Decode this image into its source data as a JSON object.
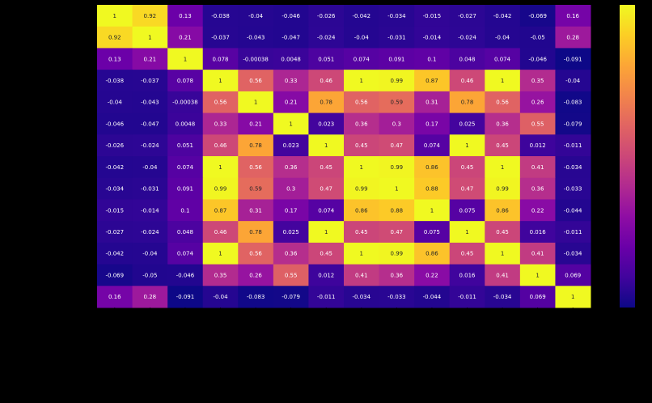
{
  "chart_data": {
    "type": "heatmap",
    "title": "",
    "xlabel": "",
    "ylabel": "",
    "colormap": "plasma",
    "vmin": -0.091,
    "vmax": 1,
    "row_count": 14,
    "col_count": 14,
    "tick_labels_visible": false,
    "colorbar": true,
    "matrix": [
      [
        "1",
        "0.92",
        "0.13",
        "-0.038",
        "-0.04",
        "-0.046",
        "-0.026",
        "-0.042",
        "-0.034",
        "-0.015",
        "-0.027",
        "-0.042",
        "-0.069",
        "0.16"
      ],
      [
        "0.92",
        "1",
        "0.21",
        "-0.037",
        "-0.043",
        "-0.047",
        "-0.024",
        "-0.04",
        "-0.031",
        "-0.014",
        "-0.024",
        "-0.04",
        "-0.05",
        "0.28"
      ],
      [
        "0.13",
        "0.21",
        "1",
        "0.078",
        "-0.00038",
        "0.0048",
        "0.051",
        "0.074",
        "0.091",
        "0.1",
        "0.048",
        "0.074",
        "-0.046",
        "-0.091"
      ],
      [
        "-0.038",
        "-0.037",
        "0.078",
        "1",
        "0.56",
        "0.33",
        "0.46",
        "1",
        "0.99",
        "0.87",
        "0.46",
        "1",
        "0.35",
        "-0.04"
      ],
      [
        "-0.04",
        "-0.043",
        "-0.00038",
        "0.56",
        "1",
        "0.21",
        "0.78",
        "0.56",
        "0.59",
        "0.31",
        "0.78",
        "0.56",
        "0.26",
        "-0.083"
      ],
      [
        "-0.046",
        "-0.047",
        "0.0048",
        "0.33",
        "0.21",
        "1",
        "0.023",
        "0.36",
        "0.3",
        "0.17",
        "0.025",
        "0.36",
        "0.55",
        "-0.079"
      ],
      [
        "-0.026",
        "-0.024",
        "0.051",
        "0.46",
        "0.78",
        "0.023",
        "1",
        "0.45",
        "0.47",
        "0.074",
        "1",
        "0.45",
        "0.012",
        "-0.011"
      ],
      [
        "-0.042",
        "-0.04",
        "0.074",
        "1",
        "0.56",
        "0.36",
        "0.45",
        "1",
        "0.99",
        "0.86",
        "0.45",
        "1",
        "0.41",
        "-0.034"
      ],
      [
        "-0.034",
        "-0.031",
        "0.091",
        "0.99",
        "0.59",
        "0.3",
        "0.47",
        "0.99",
        "1",
        "0.88",
        "0.47",
        "0.99",
        "0.36",
        "-0.033"
      ],
      [
        "-0.015",
        "-0.014",
        "0.1",
        "0.87",
        "0.31",
        "0.17",
        "0.074",
        "0.86",
        "0.88",
        "1",
        "0.075",
        "0.86",
        "0.22",
        "-0.044"
      ],
      [
        "-0.027",
        "-0.024",
        "0.048",
        "0.46",
        "0.78",
        "0.025",
        "1",
        "0.45",
        "0.47",
        "0.075",
        "1",
        "0.45",
        "0.016",
        "-0.011"
      ],
      [
        "-0.042",
        "-0.04",
        "0.074",
        "1",
        "0.56",
        "0.36",
        "0.45",
        "1",
        "0.99",
        "0.86",
        "0.45",
        "1",
        "0.41",
        "-0.034"
      ],
      [
        "-0.069",
        "-0.05",
        "-0.046",
        "0.35",
        "0.26",
        "0.55",
        "0.012",
        "0.41",
        "0.36",
        "0.22",
        "0.016",
        "0.41",
        "1",
        "0.069"
      ],
      [
        "0.16",
        "0.28",
        "-0.091",
        "-0.04",
        "-0.083",
        "-0.079",
        "-0.011",
        "-0.034",
        "-0.033",
        "-0.044",
        "-0.011",
        "-0.034",
        "0.069",
        "1"
      ]
    ]
  },
  "colors": {
    "background": "#000000",
    "text_light": "#ffffff",
    "text_dark": "#262626"
  }
}
